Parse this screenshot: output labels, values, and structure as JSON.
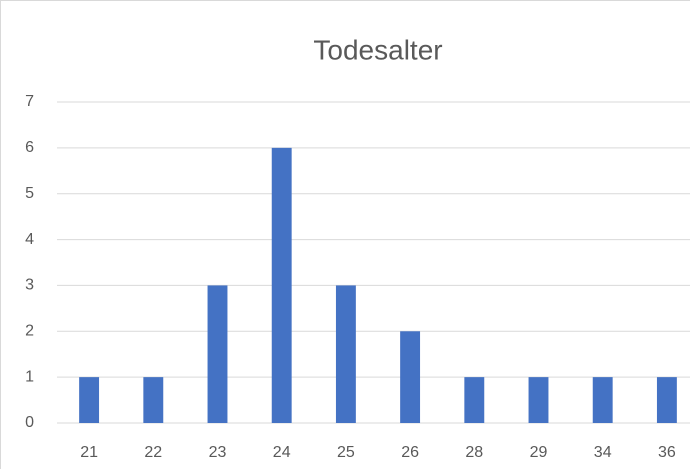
{
  "chart_data": {
    "type": "bar",
    "title": "Todesalter",
    "categories": [
      "21",
      "22",
      "23",
      "24",
      "25",
      "26",
      "28",
      "29",
      "34",
      "36"
    ],
    "values": [
      1,
      1,
      3,
      6,
      3,
      2,
      1,
      1,
      1,
      1
    ],
    "color": "#4472c4",
    "ylim": [
      0,
      7
    ],
    "yticks": [
      0,
      1,
      2,
      3,
      4,
      5,
      6,
      7
    ],
    "grid": true
  }
}
